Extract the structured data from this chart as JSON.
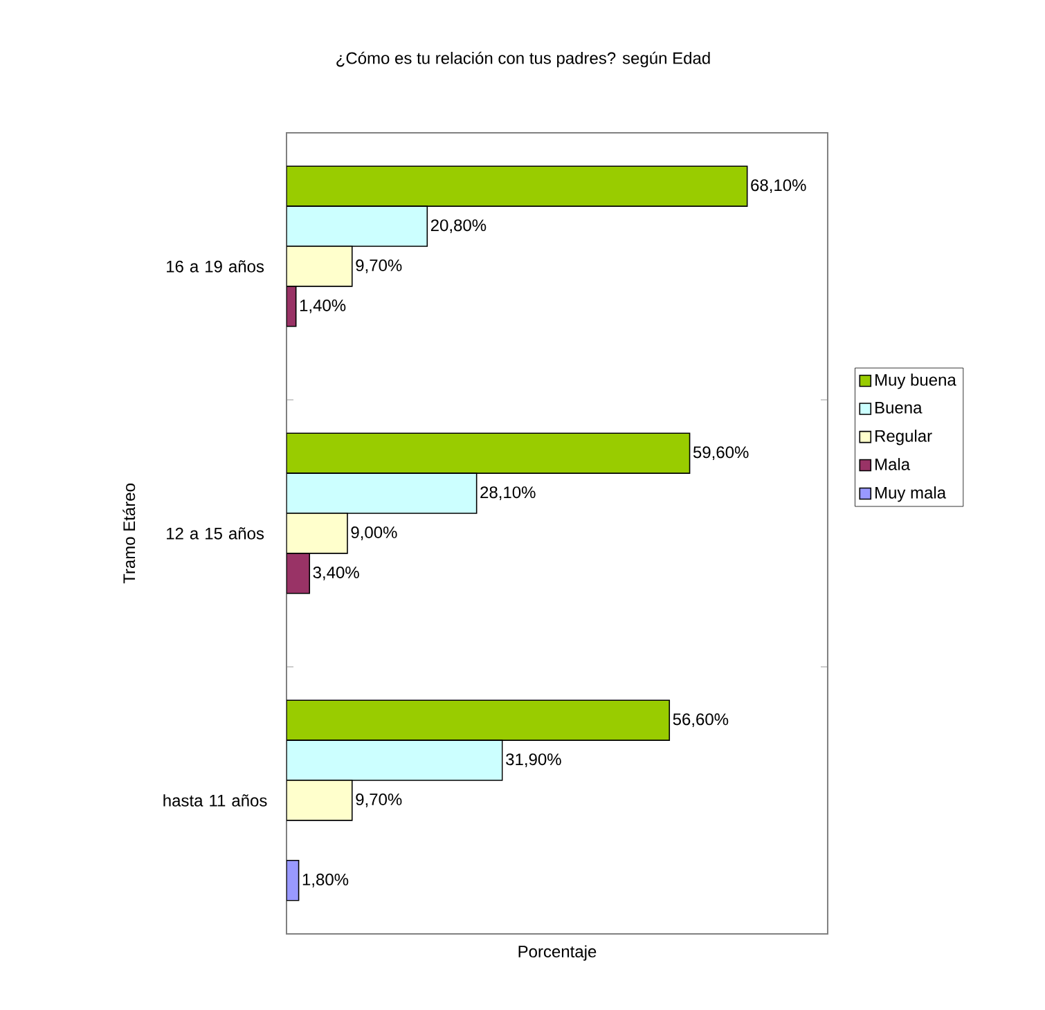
{
  "chart_data": {
    "type": "bar",
    "orientation": "horizontal",
    "title": "¿Cómo es tu relación con tus padres? según Edad",
    "xlabel": "Porcentaje",
    "ylabel": "Tramo Etáreo",
    "categories": [
      "16 a 19 años",
      "12 a 15 años",
      "hasta 11 años"
    ],
    "xlim": [
      0,
      80
    ],
    "tick_labels": "y",
    "legend": "right",
    "series": [
      {
        "name": "Muy buena",
        "color": "#99cc00",
        "values": [
          68.1,
          59.6,
          56.6
        ],
        "value_labels": [
          "68,10%",
          "59,60%",
          "56,60%"
        ]
      },
      {
        "name": "Buena",
        "color": "#ccffff",
        "values": [
          20.8,
          28.1,
          31.9
        ],
        "value_labels": [
          "20,80%",
          "28,10%",
          "31,90%"
        ]
      },
      {
        "name": "Regular",
        "color": "#ffffcc",
        "values": [
          9.7,
          9.0,
          9.7
        ],
        "value_labels": [
          "9,70%",
          "9,00%",
          "9,70%"
        ]
      },
      {
        "name": "Mala",
        "color": "#993366",
        "values": [
          1.4,
          3.4,
          null
        ],
        "value_labels": [
          "1,40%",
          "3,40%",
          null
        ]
      },
      {
        "name": "Muy mala",
        "color": "#9999ff",
        "values": [
          null,
          null,
          1.8
        ],
        "value_labels": [
          null,
          null,
          "1,80%"
        ]
      }
    ]
  }
}
